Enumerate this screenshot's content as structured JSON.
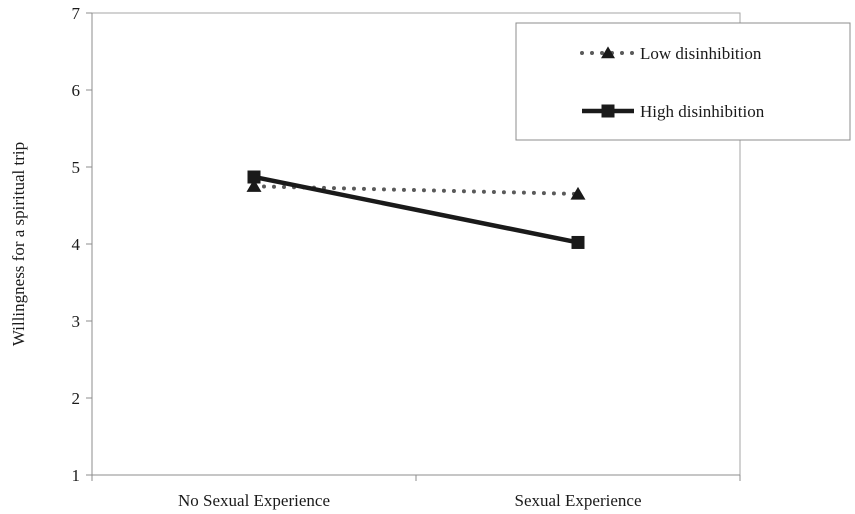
{
  "chart_data": {
    "type": "line",
    "categories": [
      "No Sexual Experience",
      "Sexual Experience"
    ],
    "series": [
      {
        "name": "Low disinhibition",
        "values": [
          4.75,
          4.65
        ],
        "style": "dotted",
        "marker": "triangle",
        "color": "#595959"
      },
      {
        "name": "High disinhibition",
        "values": [
          4.87,
          4.02
        ],
        "style": "solid",
        "marker": "square",
        "color": "#1a1a1a"
      }
    ],
    "ylabel": "Willingness for a spiritual trip",
    "xlabel": "",
    "ylim": [
      1,
      7
    ],
    "yticks": [
      1,
      2,
      3,
      4,
      5,
      6,
      7
    ],
    "grid": false,
    "legend_position": "top-right"
  }
}
